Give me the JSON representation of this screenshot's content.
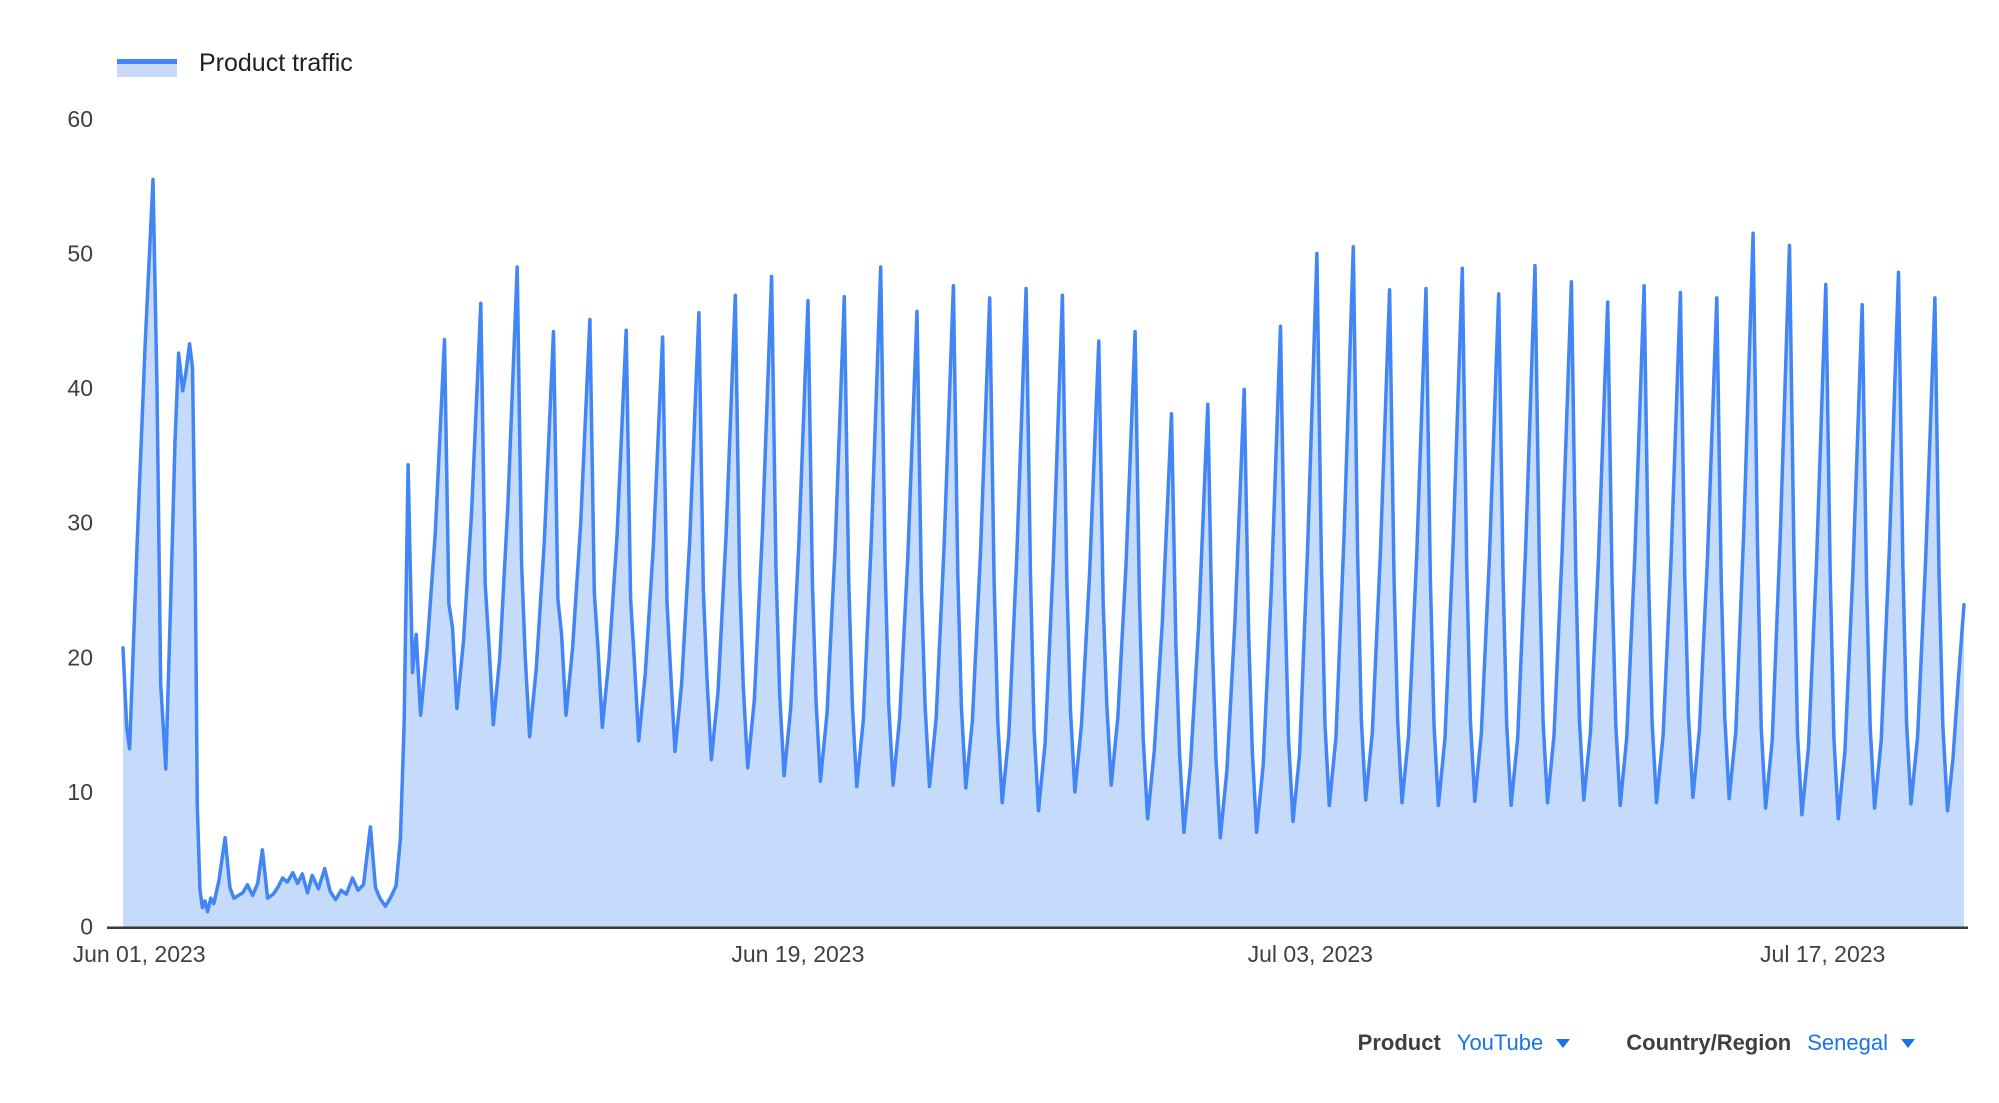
{
  "legend": {
    "label": "Product traffic"
  },
  "controls": {
    "product_label": "Product",
    "product_value": "YouTube",
    "region_label": "Country/Region",
    "region_value": "Senegal"
  },
  "colors": {
    "line": "#4285f4",
    "area_fill": "rgba(66,133,244,0.3)",
    "axis_line": "#37393b",
    "tick_text": "#3c4043",
    "legend_text": "#202124",
    "link_blue": "#1a73e8"
  },
  "chart_data": {
    "type": "area",
    "title": "Product traffic",
    "legend": "Product traffic",
    "xlabel": "",
    "ylabel": "",
    "ylim": [
      0,
      60
    ],
    "grid": false,
    "legend_position": "top-left",
    "y_ticks": [
      0,
      10,
      20,
      30,
      40,
      50,
      60
    ],
    "x_ticks": [
      {
        "label": "Jun 01, 2023",
        "day": 0.44
      },
      {
        "label": "Jun 19, 2023",
        "day": 18.44
      },
      {
        "label": "Jul 03, 2023",
        "day": 32.44
      },
      {
        "label": "Jul 17, 2023",
        "day": 46.44
      }
    ],
    "x_span_days": 50.3,
    "intro_points": [
      [
        0.0,
        20.7
      ],
      [
        0.1,
        14.8
      ],
      [
        0.18,
        13.2
      ],
      [
        0.38,
        28
      ],
      [
        0.6,
        43
      ],
      [
        0.82,
        55.5
      ],
      [
        0.93,
        40
      ],
      [
        1.03,
        18
      ],
      [
        1.17,
        11.7
      ],
      [
        1.3,
        24
      ],
      [
        1.42,
        36
      ],
      [
        1.52,
        42.6
      ],
      [
        1.63,
        39.8
      ],
      [
        1.71,
        41.0
      ],
      [
        1.82,
        43.3
      ],
      [
        1.9,
        41.5
      ],
      [
        1.97,
        28
      ],
      [
        2.03,
        9
      ],
      [
        2.1,
        2.8
      ],
      [
        2.17,
        1.4
      ],
      [
        2.24,
        1.9
      ],
      [
        2.31,
        1.1
      ],
      [
        2.4,
        2.1
      ],
      [
        2.48,
        1.7
      ],
      [
        2.62,
        3.4
      ],
      [
        2.79,
        6.6
      ],
      [
        2.92,
        2.9
      ],
      [
        3.03,
        2.1
      ],
      [
        3.15,
        2.3
      ],
      [
        3.27,
        2.5
      ],
      [
        3.4,
        3.1
      ],
      [
        3.54,
        2.3
      ],
      [
        3.68,
        3.2
      ],
      [
        3.81,
        5.7
      ],
      [
        3.95,
        2.1
      ],
      [
        4.1,
        2.4
      ],
      [
        4.23,
        2.9
      ],
      [
        4.36,
        3.6
      ],
      [
        4.49,
        3.3
      ],
      [
        4.64,
        4.0
      ],
      [
        4.77,
        3.2
      ],
      [
        4.9,
        3.9
      ],
      [
        5.04,
        2.5
      ],
      [
        5.17,
        3.8
      ],
      [
        5.34,
        2.8
      ],
      [
        5.51,
        4.3
      ],
      [
        5.66,
        2.6
      ],
      [
        5.81,
        2.0
      ],
      [
        5.96,
        2.7
      ],
      [
        6.1,
        2.4
      ],
      [
        6.27,
        3.6
      ],
      [
        6.42,
        2.7
      ],
      [
        6.57,
        3.1
      ],
      [
        6.76,
        7.4
      ],
      [
        6.9,
        2.9
      ],
      [
        7.02,
        2.1
      ],
      [
        7.17,
        1.5
      ],
      [
        7.32,
        2.2
      ],
      [
        7.46,
        3.0
      ],
      [
        7.58,
        6.5
      ],
      [
        7.68,
        15
      ]
    ],
    "daily": {
      "first_peak_day": 7.79,
      "peak_step_days": 0.99321,
      "peaks": [
        34.3,
        43.6,
        46.3,
        49.0,
        44.2,
        45.1,
        44.3,
        43.8,
        45.6,
        46.9,
        48.3,
        46.5,
        46.8,
        49.0,
        45.7,
        47.6,
        46.7,
        47.4,
        46.9,
        43.5,
        44.2,
        38.1,
        38.8,
        39.9,
        44.6,
        50.0,
        50.5,
        47.3,
        47.4,
        48.9,
        47.0,
        49.1,
        47.9,
        46.4,
        47.6,
        47.1,
        46.7,
        51.5,
        50.6,
        47.7,
        46.2,
        48.6,
        46.7
      ],
      "troughs": [
        15.7,
        16.2,
        15.0,
        14.1,
        15.7,
        14.8,
        13.8,
        13.0,
        12.4,
        11.8,
        11.2,
        10.8,
        10.4,
        10.5,
        10.4,
        10.3,
        9.2,
        8.6,
        10.0,
        10.5,
        8.0,
        7.0,
        6.6,
        7.0,
        7.8,
        9.0,
        9.4,
        9.2,
        9.0,
        9.3,
        9.0,
        9.2,
        9.4,
        9.0,
        9.2,
        9.6,
        9.5,
        8.8,
        8.3,
        8.0,
        8.8,
        9.1,
        9.4
      ],
      "shape": {
        "offsets": [
          0.12,
          0.22,
          0.34,
          0.52,
          0.74
        ],
        "peak_fall_frac": 0.55,
        "kink_plus": 6,
        "rise_plus": 5,
        "rise_frac": 0.48
      }
    },
    "tail_points": [
      [
        49.62,
        26
      ],
      [
        49.72,
        15
      ],
      [
        49.85,
        8.6
      ],
      [
        50.0,
        12.5
      ],
      [
        50.15,
        18.5
      ],
      [
        50.3,
        23.9
      ]
    ]
  }
}
